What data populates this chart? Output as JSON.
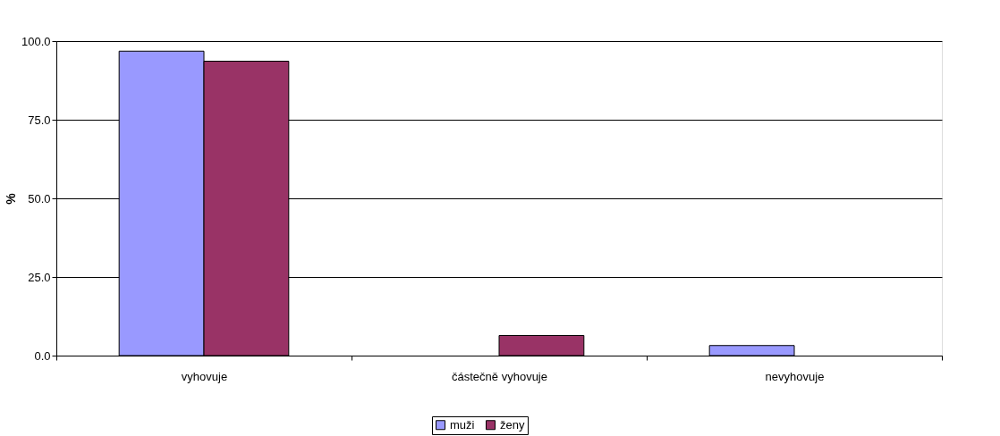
{
  "chart_data": {
    "type": "bar",
    "ylabel": "%",
    "categories": [
      "vyhovuje",
      "částečně vyhovuje",
      "nevyhovuje"
    ],
    "series": [
      {
        "name": "muži",
        "color": "#9999ff",
        "values": [
          96.8,
          0,
          3.2
        ]
      },
      {
        "name": "ženy",
        "color": "#993366",
        "values": [
          93.6,
          6.4,
          0
        ]
      }
    ],
    "ylim": [
      0,
      100
    ],
    "yticks": [
      {
        "value": 0,
        "label": "0.0"
      },
      {
        "value": 25,
        "label": "25.0"
      },
      {
        "value": 50,
        "label": "50.0"
      },
      {
        "value": 75,
        "label": "75.0"
      },
      {
        "value": 100,
        "label": "100.0"
      }
    ],
    "grid": "y",
    "legend": "bottom"
  }
}
